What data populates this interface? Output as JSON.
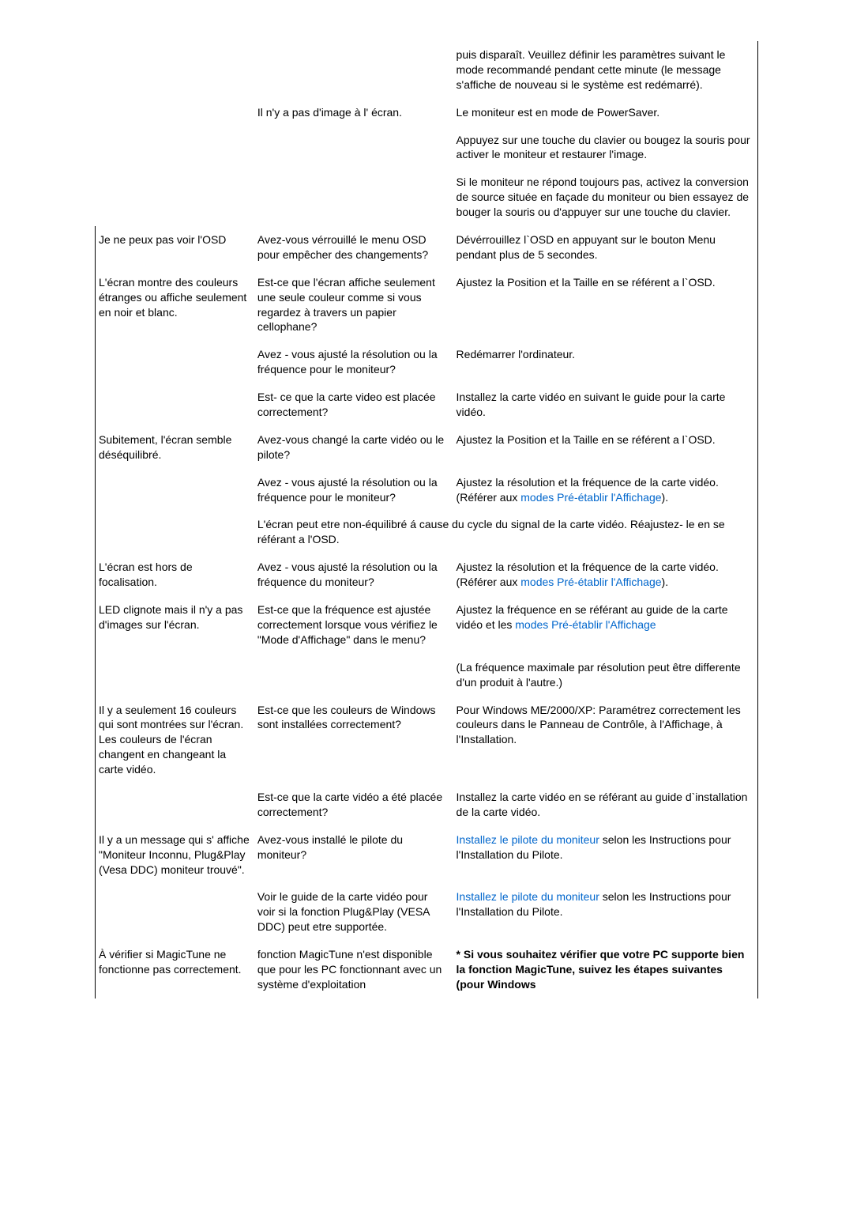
{
  "rows": [
    {
      "c1": "",
      "c1_border": "none",
      "c2": "",
      "c3": [
        {
          "t": "text",
          "v": "puis disparaît. Veuillez définir les paramètres suivant le mode recommandé pendant cette minute (le message s'affiche de nouveau si le système est redémarré)."
        }
      ]
    },
    {
      "c1": "",
      "c1_border": "none",
      "c2": "Il n'y a pas d'image à l' écran.",
      "c3": [
        {
          "t": "text",
          "v": "Le moniteur est en mode de PowerSaver."
        }
      ]
    },
    {
      "c1": "",
      "c1_border": "none",
      "c2": "",
      "c3": [
        {
          "t": "text",
          "v": "Appuyez sur une touche du clavier ou bougez la souris pour activer le moniteur et restaurer l'image."
        }
      ]
    },
    {
      "c1": "",
      "c1_border": "none",
      "c2": "",
      "c3": [
        {
          "t": "text",
          "v": "Si le moniteur ne répond toujours pas, activez la conversion de source située en façade du moniteur ou bien essayez de bouger la souris ou d'appuyer sur une touche du clavier."
        }
      ]
    },
    {
      "c1": "Je ne peux pas voir l'OSD",
      "c1_border": "left",
      "c2": "Avez-vous vérrouillé le menu OSD pour empêcher des changements?",
      "c3": [
        {
          "t": "text",
          "v": "Dévérrouillez l`OSD en appuyant sur le bouton Menu pendant plus de 5 secondes."
        }
      ]
    },
    {
      "c1": "L'écran montre des couleurs étranges ou affiche seulement en noir et blanc.",
      "c1_border": "left",
      "c2": "Est-ce que l'écran affiche seulement une seule couleur comme si vous regardez à travers un papier cellophane?",
      "c3": [
        {
          "t": "text",
          "v": "Ajustez la Position et la Taille en se référent a l`OSD."
        }
      ]
    },
    {
      "c1": "",
      "c1_border": "left",
      "c2": "Avez - vous ajusté la résolution ou la fréquence pour le moniteur?",
      "c3": [
        {
          "t": "text",
          "v": "Redémarrer l'ordinateur."
        }
      ]
    },
    {
      "c1": "",
      "c1_border": "left",
      "c2": "Est- ce que la carte video est placée correctement?",
      "c3": [
        {
          "t": "text",
          "v": "Installez la carte vidéo en suivant le guide pour la carte vidéo."
        }
      ]
    },
    {
      "c1": "Subitement, l'écran semble déséquilibré.",
      "c1_border": "left",
      "c2": "Avez-vous changé la carte vidéo ou le pilote?",
      "c3": [
        {
          "t": "text",
          "v": "Ajustez la Position et la Taille en se référent a l`OSD."
        }
      ]
    },
    {
      "c1": "",
      "c1_border": "left",
      "c2": "Avez - vous ajusté la résolution ou la fréquence pour le moniteur?",
      "c3": [
        {
          "t": "text",
          "v": "Ajustez la résolution et la fréquence de la carte vidéo."
        },
        {
          "t": "br"
        },
        {
          "t": "text",
          "v": "(Référer aux "
        },
        {
          "t": "link",
          "v": "modes Pré-établir l'Affichage"
        },
        {
          "t": "text",
          "v": ")."
        }
      ]
    },
    {
      "span23": true,
      "c1": "",
      "c1_border": "left",
      "c2": "L'écran peut etre non-équilibré á cause du cycle du signal de la carte vidéo. Réajustez- le en se référant a l'OSD."
    },
    {
      "c1": "L'écran est hors de focalisation.",
      "c1_border": "left",
      "c2": "Avez - vous ajusté la résolution ou la fréquence du moniteur?",
      "c3": [
        {
          "t": "text",
          "v": "Ajustez la résolution et la fréquence de la carte vidéo."
        },
        {
          "t": "br"
        },
        {
          "t": "text",
          "v": "(Référer aux "
        },
        {
          "t": "link",
          "v": "modes Pré-établir l'Affichage"
        },
        {
          "t": "text",
          "v": ")."
        }
      ]
    },
    {
      "c1": "LED clignote mais il n'y a pas d'images sur l'écran.",
      "c1_border": "left",
      "c2": "Est-ce que la fréquence est ajustée correctement lorsque vous vérifiez le \"Mode d'Affichage\" dans le menu?",
      "c3": [
        {
          "t": "text",
          "v": "Ajustez la fréquence en se référant au guide de la carte vidéo et les "
        },
        {
          "t": "link",
          "v": "modes Pré-établir l'Affichage"
        }
      ]
    },
    {
      "c1": "",
      "c1_border": "left",
      "c2": "",
      "c3": [
        {
          "t": "text",
          "v": "(La fréquence maximale par résolution peut être differente d'un produit à l'autre.)"
        }
      ]
    },
    {
      "c1": "Il y a seulement 16 couleurs qui sont montrées sur l'écran. Les couleurs de l'écran changent en changeant la carte vidéo.",
      "c1_border": "left",
      "c2": "Est-ce que les couleurs de Windows sont installées correctement?",
      "c3": [
        {
          "t": "text",
          "v": "Pour Windows ME/2000/XP: Paramétrez correctement les couleurs dans le Panneau de Contrôle, à l'Affichage, à l'Installation."
        }
      ]
    },
    {
      "c1": "",
      "c1_border": "left",
      "c2": "Est-ce que la carte vidéo a été placée correctement?",
      "c3": [
        {
          "t": "text",
          "v": "Installez la carte vidéo en se référant au guide d`installation de la carte vidéo."
        }
      ]
    },
    {
      "c1": "Il y a un message qui s' affiche \"Moniteur Inconnu, Plug&Play (Vesa DDC) moniteur trouvé\".",
      "c1_border": "left",
      "c2": "Avez-vous installé le pilote du moniteur?",
      "c3": [
        {
          "t": "link",
          "v": "Installez le pilote du moniteur"
        },
        {
          "t": "text",
          "v": " selon les Instructions pour l'Installation du Pilote."
        }
      ]
    },
    {
      "c1": "",
      "c1_border": "left",
      "c2": "Voir le guide de la carte vidéo pour voir si la fonction Plug&Play (VESA DDC) peut etre supportée.",
      "c3": [
        {
          "t": "link",
          "v": "Installez le pilote du moniteur"
        },
        {
          "t": "text",
          "v": " selon les Instructions pour l'Installation du Pilote."
        }
      ]
    },
    {
      "c1": "À vérifier si MagicTune ne fonctionne pas correctement.",
      "c1_border": "left",
      "c2": "fonction MagicTune n'est disponible que pour les PC fonctionnant avec un système d'exploitation",
      "c3": [
        {
          "t": "bold",
          "v": "* Si vous souhaitez vérifier que votre PC supporte bien la fonction MagicTune, suivez les étapes suivantes (pour Windows"
        }
      ]
    }
  ],
  "colors": {
    "link": "#0066cc",
    "text": "#000000",
    "border": "#000000",
    "background": "#ffffff"
  },
  "font_size_pt": 10.5
}
